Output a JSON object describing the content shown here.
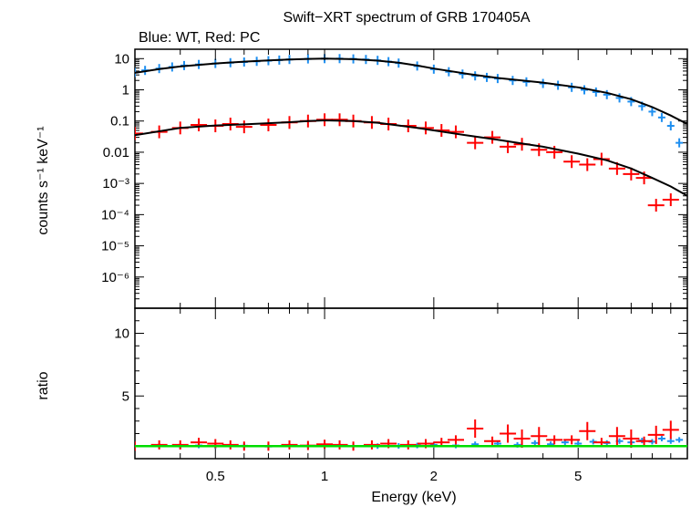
{
  "chart_data": [
    {
      "type": "scatter",
      "title": "Swift−XRT spectrum of GRB 170405A",
      "subtitle": "Blue: WT, Red: PC",
      "xlabel": "",
      "ylabel": "counts s⁻¹ keV⁻¹",
      "xscale": "log",
      "yscale": "log",
      "xlim": [
        0.3,
        10
      ],
      "ylim": [
        1e-07,
        20
      ],
      "yticks": [
        {
          "value": 10,
          "label": "10"
        },
        {
          "value": 1,
          "label": "1"
        },
        {
          "value": 0.1,
          "label": "0.1"
        },
        {
          "value": 0.01,
          "label": "0.01"
        },
        {
          "value": 0.001,
          "label": "10⁻³"
        },
        {
          "value": 0.0001,
          "label": "10⁻⁴"
        },
        {
          "value": 1e-05,
          "label": "10⁻⁵"
        },
        {
          "value": 1e-06,
          "label": "10⁻⁶"
        }
      ],
      "colors": {
        "WT": "#1e8ff0",
        "PC": "#ff0000",
        "model": "#000000"
      },
      "series": [
        {
          "key": "WT",
          "x": [
            0.3,
            0.32,
            0.35,
            0.38,
            0.41,
            0.45,
            0.5,
            0.55,
            0.6,
            0.65,
            0.7,
            0.75,
            0.8,
            0.9,
            1.0,
            1.1,
            1.2,
            1.3,
            1.4,
            1.5,
            1.6,
            1.8,
            2.0,
            2.2,
            2.4,
            2.6,
            2.8,
            3.0,
            3.3,
            3.6,
            4.0,
            4.4,
            4.8,
            5.2,
            5.6,
            6.0,
            6.5,
            7.0,
            7.5,
            8.0,
            8.5,
            9.0,
            9.5
          ],
          "y": [
            3.6,
            4.2,
            4.8,
            5.4,
            6.0,
            6.5,
            7.0,
            7.4,
            7.8,
            8.2,
            8.6,
            9.0,
            9.4,
            9.8,
            10.0,
            10.0,
            9.8,
            9.4,
            8.8,
            8.0,
            7.2,
            5.8,
            4.6,
            3.8,
            3.2,
            2.8,
            2.5,
            2.3,
            2.0,
            1.8,
            1.6,
            1.4,
            1.2,
            1.0,
            0.85,
            0.7,
            0.55,
            0.42,
            0.3,
            0.2,
            0.13,
            0.07,
            0.02
          ]
        },
        {
          "key": "PC",
          "x": [
            0.3,
            0.35,
            0.4,
            0.45,
            0.5,
            0.55,
            0.6,
            0.7,
            0.8,
            0.9,
            1.0,
            1.1,
            1.2,
            1.35,
            1.5,
            1.7,
            1.9,
            2.1,
            2.3,
            2.6,
            2.9,
            3.2,
            3.5,
            3.9,
            4.3,
            4.8,
            5.3,
            5.8,
            6.4,
            7.0,
            7.6,
            8.2,
            9.0
          ],
          "y": [
            0.04,
            0.045,
            0.06,
            0.075,
            0.07,
            0.08,
            0.065,
            0.075,
            0.09,
            0.1,
            0.11,
            0.11,
            0.1,
            0.09,
            0.08,
            0.07,
            0.06,
            0.05,
            0.045,
            0.02,
            0.03,
            0.015,
            0.018,
            0.012,
            0.01,
            0.005,
            0.004,
            0.006,
            0.003,
            0.002,
            0.0015,
            0.0002,
            0.0003
          ]
        },
        {
          "key": "model-WT",
          "x": [
            0.3,
            0.35,
            0.4,
            0.5,
            0.6,
            0.7,
            0.8,
            0.9,
            1.0,
            1.2,
            1.4,
            1.6,
            1.8,
            2.0,
            2.5,
            3.0,
            3.5,
            4.0,
            5.0,
            6.0,
            7.0,
            8.0,
            9.0,
            10.0
          ],
          "y": [
            3.5,
            4.6,
            5.6,
            7.0,
            8.0,
            8.8,
            9.4,
            9.8,
            10.0,
            9.6,
            8.6,
            7.4,
            6.0,
            4.8,
            3.2,
            2.4,
            2.0,
            1.7,
            1.2,
            0.8,
            0.5,
            0.28,
            0.15,
            0.08
          ]
        },
        {
          "key": "model-PC",
          "x": [
            0.3,
            0.4,
            0.5,
            0.6,
            0.7,
            0.8,
            0.9,
            1.0,
            1.2,
            1.4,
            1.6,
            1.8,
            2.0,
            2.5,
            3.0,
            3.5,
            4.0,
            5.0,
            6.0,
            7.0,
            8.0,
            9.0,
            10.0
          ],
          "y": [
            0.035,
            0.06,
            0.072,
            0.078,
            0.085,
            0.092,
            0.1,
            0.105,
            0.1,
            0.088,
            0.072,
            0.06,
            0.05,
            0.034,
            0.025,
            0.019,
            0.015,
            0.009,
            0.0055,
            0.003,
            0.0015,
            0.0008,
            0.0004
          ]
        }
      ]
    },
    {
      "type": "scatter",
      "xlabel": "Energy (keV)",
      "ylabel": "ratio",
      "xscale": "log",
      "xlim": [
        0.3,
        10
      ],
      "ylim": [
        0,
        12
      ],
      "xticks": [
        {
          "value": 0.5,
          "label": "0.5"
        },
        {
          "value": 1,
          "label": "1"
        },
        {
          "value": 2,
          "label": "2"
        },
        {
          "value": 5,
          "label": "5"
        }
      ],
      "yticks": [
        {
          "value": 10,
          "label": "10"
        },
        {
          "value": 5,
          "label": "5"
        }
      ],
      "reference_line": 1,
      "colors": {
        "WT": "#1e8ff0",
        "PC": "#ff0000",
        "unity": "#00dd00"
      },
      "series": [
        {
          "key": "WT",
          "x": [
            0.3,
            0.35,
            0.4,
            0.45,
            0.5,
            0.6,
            0.7,
            0.8,
            0.9,
            1.0,
            1.2,
            1.4,
            1.6,
            1.8,
            2.0,
            2.3,
            2.6,
            3.0,
            3.4,
            3.8,
            4.2,
            4.6,
            5.0,
            5.5,
            6.0,
            6.5,
            7.0,
            7.5,
            8.0,
            8.5,
            9.0,
            9.5
          ],
          "y": [
            1.0,
            1.02,
            0.98,
            1.05,
            1.0,
            1.03,
            0.97,
            1.02,
            1.0,
            1.01,
            0.99,
            1.0,
            1.02,
            1.05,
            1.1,
            1.05,
            1.15,
            1.2,
            1.1,
            1.25,
            1.15,
            1.3,
            1.2,
            1.35,
            1.25,
            1.4,
            1.3,
            1.45,
            1.35,
            1.6,
            1.4,
            1.5
          ]
        },
        {
          "key": "PC",
          "x": [
            0.3,
            0.35,
            0.4,
            0.45,
            0.5,
            0.55,
            0.6,
            0.7,
            0.8,
            0.9,
            1.0,
            1.1,
            1.2,
            1.35,
            1.5,
            1.7,
            1.9,
            2.1,
            2.3,
            2.6,
            2.9,
            3.2,
            3.5,
            3.9,
            4.3,
            4.8,
            5.3,
            5.8,
            6.4,
            7.0,
            7.6,
            8.2,
            9.0
          ],
          "y": [
            1.0,
            1.1,
            1.1,
            1.3,
            1.2,
            1.1,
            1.0,
            1.0,
            1.1,
            1.05,
            1.15,
            1.1,
            1.0,
            1.1,
            1.2,
            1.1,
            1.2,
            1.3,
            1.5,
            2.4,
            1.4,
            2.0,
            1.6,
            1.8,
            1.5,
            1.5,
            2.2,
            1.3,
            1.8,
            1.6,
            1.4,
            1.9,
            2.3
          ]
        }
      ]
    }
  ]
}
